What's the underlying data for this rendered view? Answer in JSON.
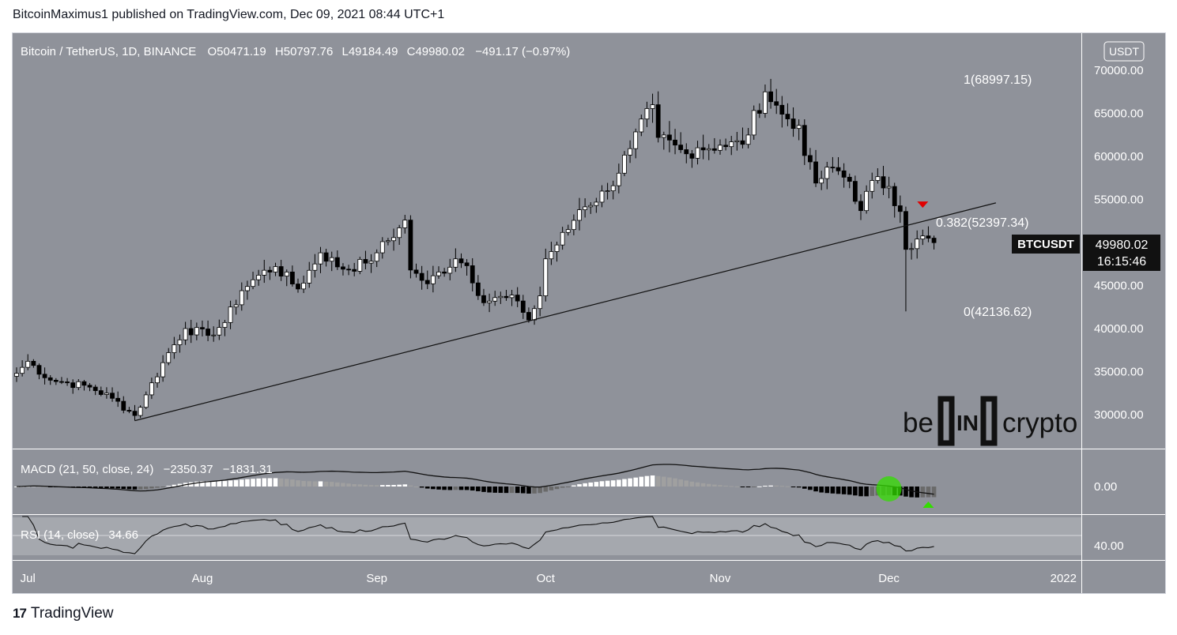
{
  "header": {
    "publisher_line": "BitcoinMaximus1 published on TradingView.com, Dec 09, 2021 08:44 UTC+1"
  },
  "footer": {
    "brand": "TradingView",
    "logo_glyph": "17"
  },
  "watermark": {
    "be": "be",
    "in": "IN",
    "crypto": "crypto"
  },
  "colors": {
    "pane_bg": "#8f929a",
    "rsi_band": "#a5a8ae",
    "axis_bg": "#8f929a",
    "up": "#ffffff",
    "down": "#000000",
    "red_marker": "#e00000",
    "green_marker": "#33dd00"
  },
  "legend": {
    "symbol": "Bitcoin / TetherUS, 1D, BINANCE",
    "o_label": "O",
    "o": "50471.19",
    "h_label": "H",
    "h": "50797.76",
    "l_label": "L",
    "l": "49184.49",
    "c_label": "C",
    "c": "49980.02",
    "change": "−491.17 (−0.97%)"
  },
  "price_axis": {
    "currency": "USDT",
    "ticks": [
      "70000.00",
      "65000.00",
      "60000.00",
      "55000.00",
      "50000.00",
      "45000.00",
      "40000.00",
      "35000.00",
      "30000.00"
    ],
    "tick_values": [
      70000,
      65000,
      60000,
      55000,
      50000,
      45000,
      40000,
      35000,
      30000
    ],
    "ticker": "BTCUSDT",
    "last_price": "49980.02",
    "countdown": "16:15:46"
  },
  "fib": {
    "top": "1(68997.15)",
    "mid": "0.382(52397.34)",
    "bottom": "0(42136.62)"
  },
  "macd": {
    "label": "MACD (21, 50, close, 24)",
    "v1": "−2350.37",
    "v2": "−1831.31",
    "axis": "0.00"
  },
  "rsi": {
    "label": "RSI (14, close)",
    "value": "34.66",
    "axis": "40.00"
  },
  "time_axis": [
    "Jul",
    "Aug",
    "Sep",
    "Oct",
    "Nov",
    "Dec",
    "2022"
  ],
  "chart_data": {
    "type": "candlestick",
    "symbol": "BTCUSDT",
    "timeframe": "1D",
    "exchange": "BINANCE",
    "ylim": [
      27500,
      73000
    ],
    "anchors": [
      [
        "2021-06-29",
        34800
      ],
      [
        "2021-07-01",
        36200
      ],
      [
        "2021-07-05",
        34000
      ],
      [
        "2021-07-08",
        33700
      ],
      [
        "2021-07-12",
        33200
      ],
      [
        "2021-07-16",
        31900
      ],
      [
        "2021-07-20",
        29900
      ],
      [
        "2021-07-22",
        32300
      ],
      [
        "2021-07-26",
        37200
      ],
      [
        "2021-07-29",
        40000
      ],
      [
        "2021-08-02",
        39200
      ],
      [
        "2021-08-05",
        40700
      ],
      [
        "2021-08-08",
        44400
      ],
      [
        "2021-08-11",
        46200
      ],
      [
        "2021-08-14",
        47200
      ],
      [
        "2021-08-18",
        44600
      ],
      [
        "2021-08-22",
        48800
      ],
      [
        "2021-08-26",
        46900
      ],
      [
        "2021-08-30",
        47600
      ],
      [
        "2021-09-01",
        48800
      ],
      [
        "2021-09-05",
        51700
      ],
      [
        "2021-09-06",
        52600
      ],
      [
        "2021-09-07",
        46800
      ],
      [
        "2021-09-10",
        45200
      ],
      [
        "2021-09-15",
        48100
      ],
      [
        "2021-09-17",
        47300
      ],
      [
        "2021-09-20",
        43000
      ],
      [
        "2021-09-22",
        43600
      ],
      [
        "2021-09-26",
        43200
      ],
      [
        "2021-09-28",
        41000
      ],
      [
        "2021-09-30",
        43800
      ],
      [
        "2021-10-01",
        48100
      ],
      [
        "2021-10-05",
        51500
      ],
      [
        "2021-10-07",
        53800
      ],
      [
        "2021-10-12",
        56000
      ],
      [
        "2021-10-16",
        60900
      ],
      [
        "2021-10-20",
        66000
      ],
      [
        "2021-10-21",
        62200
      ],
      [
        "2021-10-26",
        60300
      ],
      [
        "2021-10-28",
        61000
      ],
      [
        "2021-11-01",
        61300
      ],
      [
        "2021-11-05",
        61400
      ],
      [
        "2021-11-09",
        67500
      ],
      [
        "2021-11-12",
        64900
      ],
      [
        "2021-11-15",
        63600
      ],
      [
        "2021-11-16",
        60100
      ],
      [
        "2021-11-18",
        56900
      ],
      [
        "2021-11-21",
        58700
      ],
      [
        "2021-11-24",
        57100
      ],
      [
        "2021-11-26",
        53700
      ],
      [
        "2021-11-28",
        57200
      ],
      [
        "2021-12-01",
        56500
      ],
      [
        "2021-12-03",
        53600
      ],
      [
        "2021-12-04",
        49200
      ],
      [
        "2021-12-06",
        50400
      ],
      [
        "2021-12-08",
        50500
      ],
      [
        "2021-12-09",
        49980
      ]
    ],
    "last_candle": {
      "date": "2021-12-09",
      "open": 50471.19,
      "high": 50797.76,
      "low": 49184.49,
      "close": 49980.02
    },
    "extremes": {
      "low_2021-07-20": 29300,
      "high_2021-11-10": 69000,
      "low_2021-12-04": 42000
    },
    "trendline": [
      [
        "2021-07-20",
        29300
      ],
      [
        "2021-09-21",
        39300
      ],
      [
        "2021-12-20",
        54600
      ]
    ],
    "fib_levels": [
      {
        "ratio": 1,
        "value": 68997.15
      },
      {
        "ratio": 0.382,
        "value": 52397.34
      },
      {
        "ratio": 0,
        "value": 42136.62
      }
    ],
    "macd": {
      "params": [
        21,
        50,
        24
      ],
      "line": -2350.37,
      "signal": -1831.31
    },
    "rsi": {
      "period": 14,
      "value": 34.66,
      "ylim": [
        20,
        90
      ]
    },
    "markers": [
      {
        "type": "down-arrow",
        "color": "red",
        "date": "2021-12-07",
        "pane": "price"
      },
      {
        "type": "up-arrow",
        "color": "green",
        "date": "2021-12-08",
        "pane": "macd"
      },
      {
        "type": "circle",
        "color": "green",
        "date": "2021-12-01",
        "pane": "macd"
      }
    ]
  }
}
